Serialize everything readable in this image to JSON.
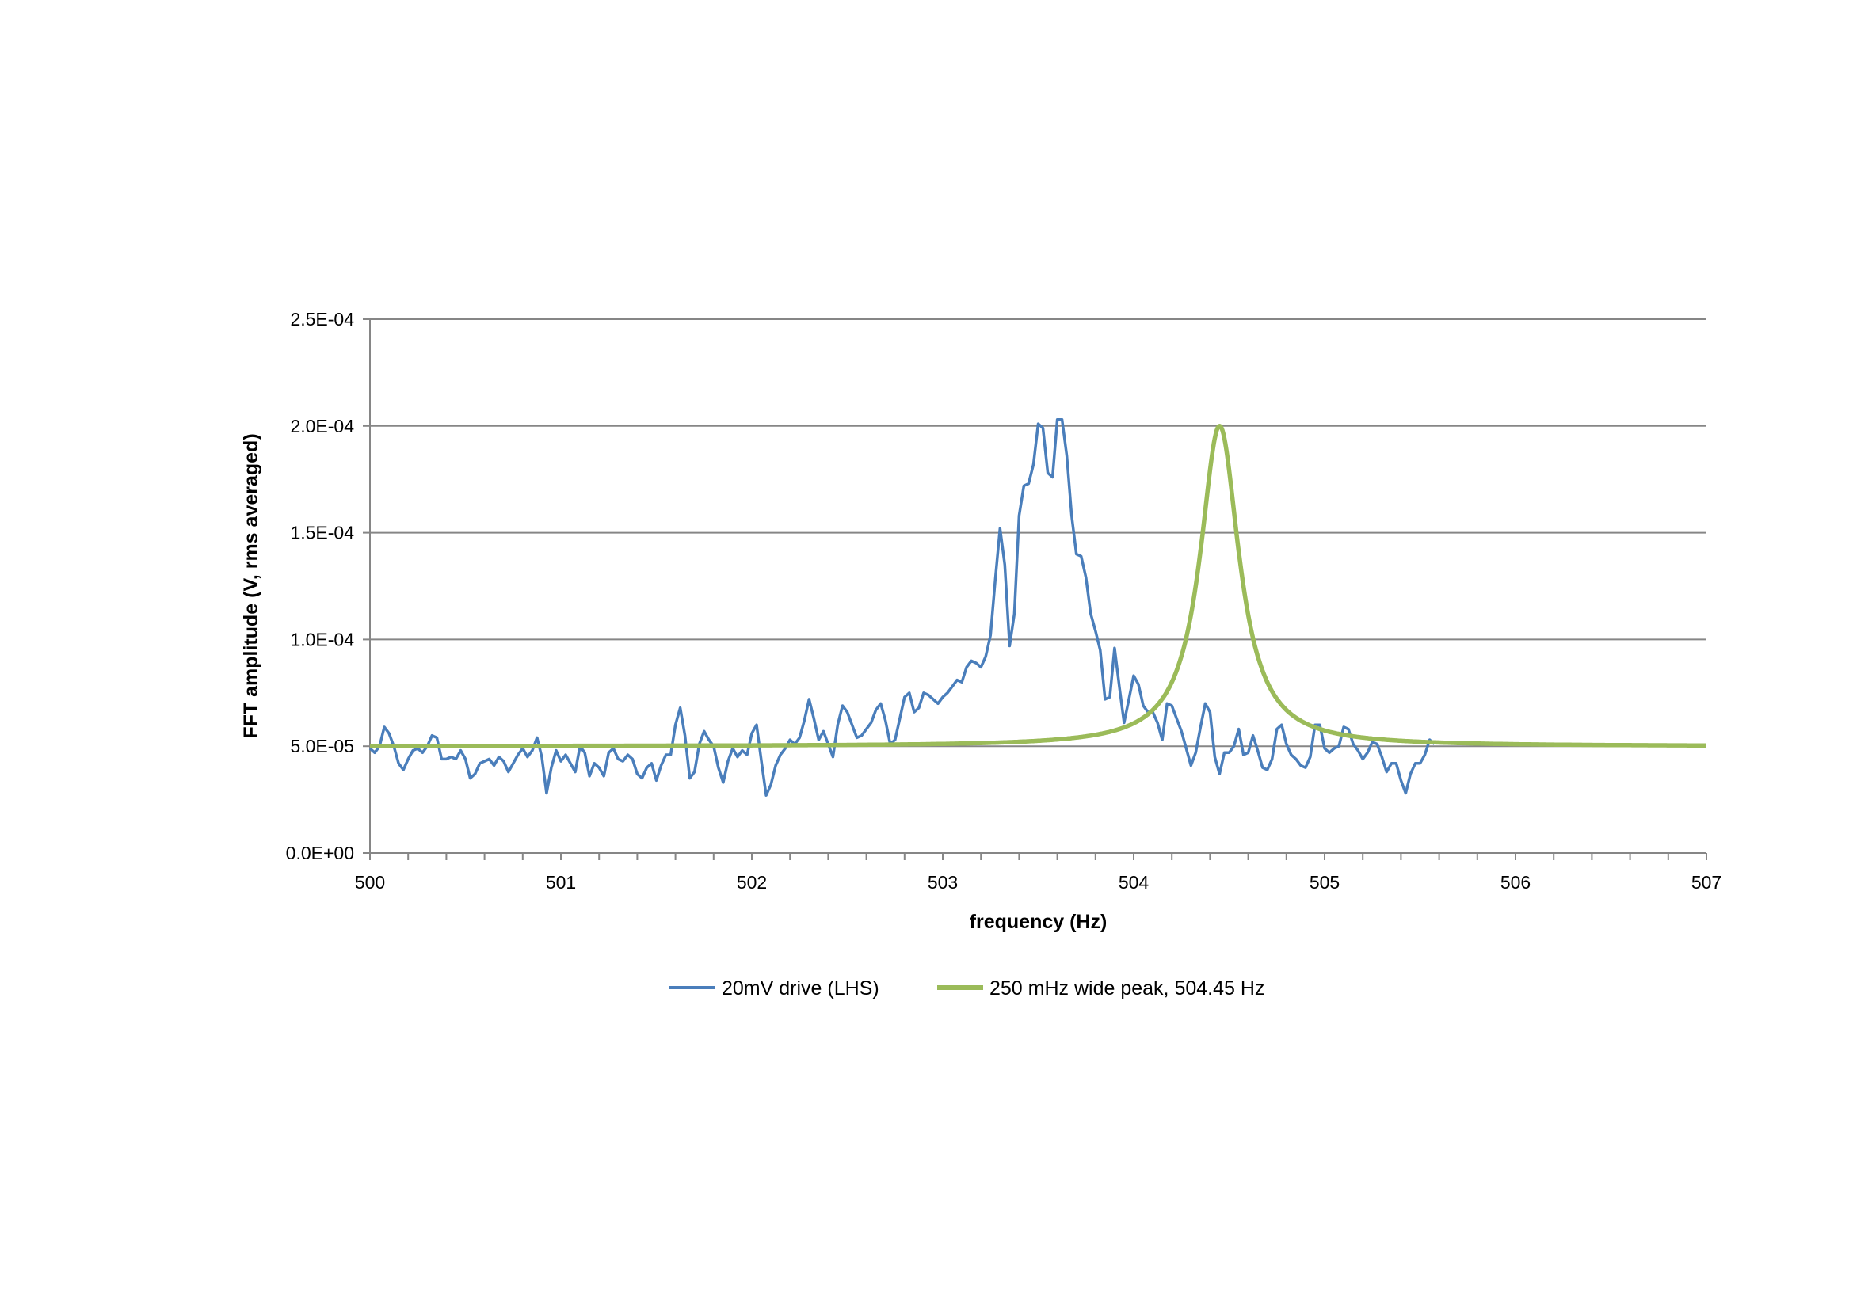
{
  "chart_data": {
    "type": "line",
    "title": "",
    "xlabel": "frequency (Hz)",
    "ylabel": "FFT amplitude (V, rms averaged)",
    "xlim": [
      500,
      507
    ],
    "ylim": [
      0,
      0.00025
    ],
    "x_ticks": [
      "500",
      "501",
      "502",
      "503",
      "504",
      "505",
      "506",
      "507"
    ],
    "y_ticks": [
      "0.0E+00",
      "5.0E-05",
      "1.0E-04",
      "1.5E-04",
      "2.0E-04",
      "2.5E-04"
    ],
    "grid": "horizontal",
    "legend_position": "bottom",
    "series": [
      {
        "name": "20mV drive (LHS)",
        "color": "#4a7ebb",
        "x_start": 500,
        "x_step": 0.025,
        "values": [
          4.9e-05,
          4.7e-05,
          5e-05,
          5.9e-05,
          5.6e-05,
          5e-05,
          4.2e-05,
          3.9e-05,
          4.4e-05,
          4.8e-05,
          4.9e-05,
          4.7e-05,
          5e-05,
          5.5e-05,
          5.4e-05,
          4.4e-05,
          4.4e-05,
          4.5e-05,
          4.4e-05,
          4.8e-05,
          4.4e-05,
          3.5e-05,
          3.7e-05,
          4.2e-05,
          4.3e-05,
          4.4e-05,
          4.1e-05,
          4.5e-05,
          4.3e-05,
          3.8e-05,
          4.2e-05,
          4.6e-05,
          4.9e-05,
          4.5e-05,
          4.8e-05,
          5.4e-05,
          4.5e-05,
          2.8e-05,
          4e-05,
          4.8e-05,
          4.3e-05,
          4.6e-05,
          4.2e-05,
          3.8e-05,
          5e-05,
          4.7e-05,
          3.6e-05,
          4.2e-05,
          4e-05,
          3.6e-05,
          4.7e-05,
          4.9e-05,
          4.4e-05,
          4.3e-05,
          4.6e-05,
          4.4e-05,
          3.7e-05,
          3.5e-05,
          4e-05,
          4.2e-05,
          3.4e-05,
          4.1e-05,
          4.6e-05,
          4.6e-05,
          6e-05,
          6.8e-05,
          5.5e-05,
          3.5e-05,
          3.8e-05,
          5.1e-05,
          5.7e-05,
          5.3e-05,
          5e-05,
          4e-05,
          3.3e-05,
          4.3e-05,
          4.9e-05,
          4.5e-05,
          4.8e-05,
          4.6e-05,
          5.6e-05,
          6e-05,
          4.3e-05,
          2.7e-05,
          3.2e-05,
          4.1e-05,
          4.6e-05,
          4.9e-05,
          5.3e-05,
          5.1e-05,
          5.4e-05,
          6.2e-05,
          7.2e-05,
          6.3e-05,
          5.3e-05,
          5.7e-05,
          5.1e-05,
          4.5e-05,
          6e-05,
          6.9e-05,
          6.6e-05,
          6e-05,
          5.4e-05,
          5.5e-05,
          5.8e-05,
          6.1e-05,
          6.7e-05,
          7e-05,
          6.2e-05,
          5.1e-05,
          5.3e-05,
          6.3e-05,
          7.3e-05,
          7.5e-05,
          6.6e-05,
          6.8e-05,
          7.5e-05,
          7.4e-05,
          7.2e-05,
          7e-05,
          7.3e-05,
          7.5e-05,
          7.8e-05,
          8.1e-05,
          8e-05,
          8.7e-05,
          9e-05,
          8.9e-05,
          8.7e-05,
          9.2e-05,
          0.000102,
          0.000128,
          0.000152,
          0.000135,
          9.7e-05,
          0.000112,
          0.000158,
          0.000172,
          0.000173,
          0.000182,
          0.000201,
          0.000199,
          0.000178,
          0.000176,
          0.000203,
          0.000203,
          0.000186,
          0.000158,
          0.00014,
          0.000139,
          0.000129,
          0.000112,
          0.000104,
          9.5e-05,
          7.2e-05,
          7.3e-05,
          9.6e-05,
          7.8e-05,
          6.1e-05,
          7.2e-05,
          8.3e-05,
          7.9e-05,
          6.9e-05,
          6.6e-05,
          6.6e-05,
          6.1e-05,
          5.3e-05,
          7e-05,
          6.9e-05,
          6.3e-05,
          5.7e-05,
          4.9e-05,
          4.1e-05,
          4.7e-05,
          5.9e-05,
          7e-05,
          6.6e-05,
          4.5e-05,
          3.7e-05,
          4.7e-05,
          4.7e-05,
          5e-05,
          5.8e-05,
          4.6e-05,
          4.7e-05,
          5.5e-05,
          4.8e-05,
          4e-05,
          3.9e-05,
          4.4e-05,
          5.8e-05,
          6e-05,
          5.1e-05,
          4.6e-05,
          4.4e-05,
          4.1e-05,
          4e-05,
          4.5e-05,
          6e-05,
          6e-05,
          4.9e-05,
          4.7e-05,
          4.9e-05,
          5e-05,
          5.9e-05,
          5.8e-05,
          5.1e-05,
          4.8e-05,
          4.4e-05,
          4.7e-05,
          5.2e-05,
          5.1e-05,
          4.5e-05,
          3.8e-05,
          4.2e-05,
          4.2e-05,
          3.4e-05,
          2.8e-05,
          3.7e-05,
          4.2e-05,
          4.2e-05,
          4.6e-05,
          5.3e-05,
          5.1e-05
        ]
      },
      {
        "name": "250 mHz wide peak, 504.45 Hz",
        "color": "#9bbb59",
        "model": "lorentzian",
        "center": 504.45,
        "fwhm": 0.25,
        "peak": 0.0002,
        "baseline": 5e-05
      }
    ]
  }
}
